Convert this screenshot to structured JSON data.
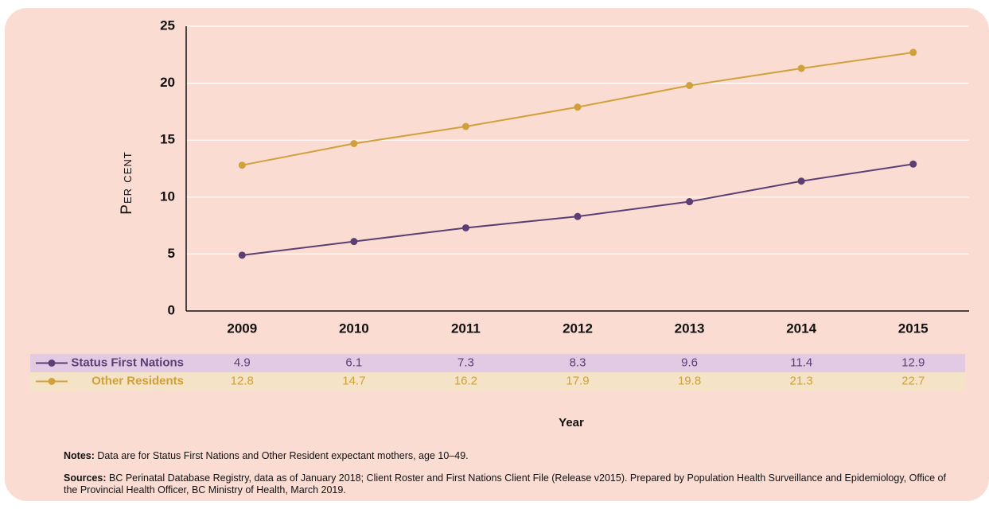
{
  "chart_data": {
    "type": "line",
    "categories": [
      "2009",
      "2010",
      "2011",
      "2012",
      "2013",
      "2014",
      "2015"
    ],
    "series": [
      {
        "name": "Status First Nations",
        "color": "#5b3f73",
        "values": [
          4.9,
          6.1,
          7.3,
          8.3,
          9.6,
          11.4,
          12.9
        ]
      },
      {
        "name": "Other Residents",
        "color": "#d0a13a",
        "values": [
          12.8,
          14.7,
          16.2,
          17.9,
          19.8,
          21.3,
          22.7
        ]
      }
    ],
    "ylim": [
      0,
      25
    ],
    "yticks": [
      0,
      5,
      10,
      15,
      20,
      25
    ],
    "grid": true,
    "xlabel": "Year",
    "ylabel": "Per cent"
  },
  "notes": {
    "label": "Notes:",
    "text": "Data are for Status First Nations and Other Resident expectant mothers, age 10–49."
  },
  "sources": {
    "label": "Sources:",
    "text": "BC Perinatal Database Registry, data as of January 2018; Client Roster and First Nations Client File (Release v2015). Prepared by Population Health Surveillance and Epidemiology, Office of the Provincial Health Officer, BC Ministry of Health, March 2019."
  }
}
